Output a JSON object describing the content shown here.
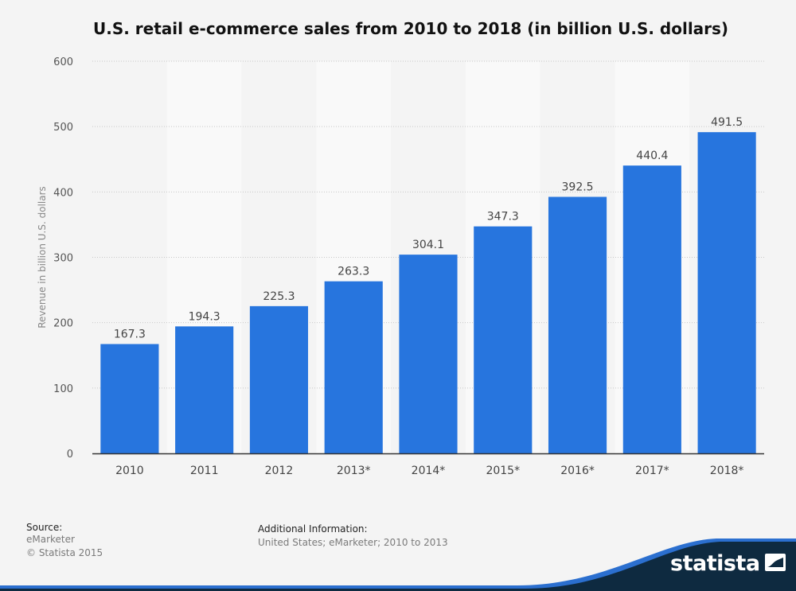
{
  "chart_data": {
    "type": "bar",
    "title": "U.S. retail e-commerce sales from 2010 to 2018 (in billion U.S. dollars)",
    "xlabel": "",
    "ylabel": "Revenue in billion U.S. dollars",
    "categories": [
      "2010",
      "2011",
      "2012",
      "2013*",
      "2014*",
      "2015*",
      "2016*",
      "2017*",
      "2018*"
    ],
    "values": [
      167.3,
      194.3,
      225.3,
      263.3,
      304.1,
      347.3,
      392.5,
      440.4,
      491.5
    ],
    "value_labels": [
      "167.3",
      "194.3",
      "225.3",
      "263.3",
      "304.1",
      "347.3",
      "392.5",
      "440.4",
      "491.5"
    ],
    "ylim": [
      0,
      600
    ],
    "yticks": [
      "0",
      "100",
      "200",
      "300",
      "400",
      "500",
      "600"
    ],
    "grid": "horizontal dotted",
    "legend": "none",
    "bar_color": "#2775de"
  },
  "footer": {
    "source_heading": "Source:",
    "source_lines": [
      "eMarketer",
      "© Statista 2015"
    ],
    "info_heading": "Additional Information:",
    "info_lines": [
      "United States; eMarketer; 2010 to 2013"
    ]
  },
  "brand": {
    "name": "statista",
    "icon": "statista-logo-icon",
    "wave_color": "#0e2a40",
    "accent_color": "#2b6fcf"
  }
}
